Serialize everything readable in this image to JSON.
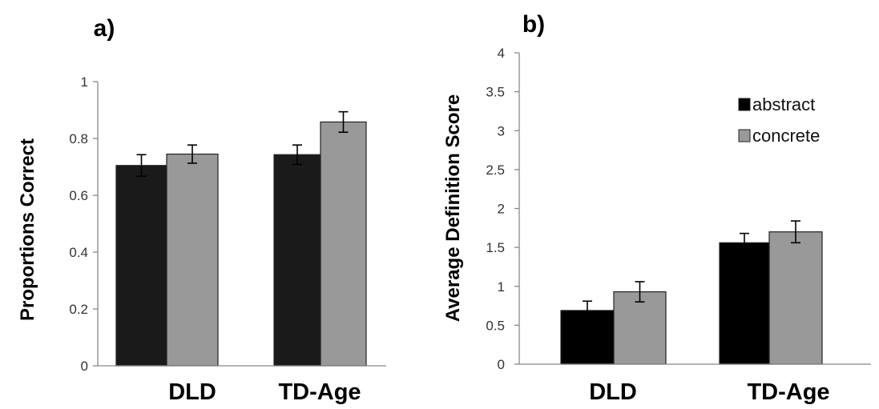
{
  "chart_data": [
    {
      "panel_label": "a)",
      "type": "bar",
      "categories": [
        "DLD",
        "TD-Age"
      ],
      "series": [
        {
          "values": [
            0.705,
            0.743
          ],
          "errors": [
            0.038,
            0.034
          ],
          "color": "#1a1a1a"
        },
        {
          "values": [
            0.745,
            0.858
          ],
          "errors": [
            0.032,
            0.036
          ],
          "color": "#999999"
        }
      ],
      "ylabel": "Proportions Correct",
      "xlabel": "",
      "ylim": [
        0,
        1
      ],
      "yticks": [
        0,
        0.2,
        0.4,
        0.6,
        0.8,
        1
      ],
      "ytick_labels": [
        "0",
        "0.2",
        "0.4",
        "0.6",
        "0.8",
        "1"
      ],
      "grid": false,
      "legend": null
    },
    {
      "panel_label": "b)",
      "type": "bar",
      "categories": [
        "DLD",
        "TD-Age"
      ],
      "series": [
        {
          "name": "abstract",
          "values": [
            0.69,
            1.56
          ],
          "errors": [
            0.12,
            0.12
          ],
          "color": "#000000"
        },
        {
          "name": "concrete",
          "values": [
            0.93,
            1.7
          ],
          "errors": [
            0.13,
            0.14
          ],
          "color": "#999999"
        }
      ],
      "ylabel": "Average Definition Score",
      "xlabel": "",
      "ylim": [
        0,
        4
      ],
      "yticks": [
        0,
        0.5,
        1,
        1.5,
        2,
        2.5,
        3,
        3.5,
        4
      ],
      "ytick_labels": [
        "0",
        "0.5",
        "1",
        "1.5",
        "2",
        "2.5",
        "3",
        "3.5",
        "4"
      ],
      "grid": false,
      "legend": "top-right"
    }
  ]
}
